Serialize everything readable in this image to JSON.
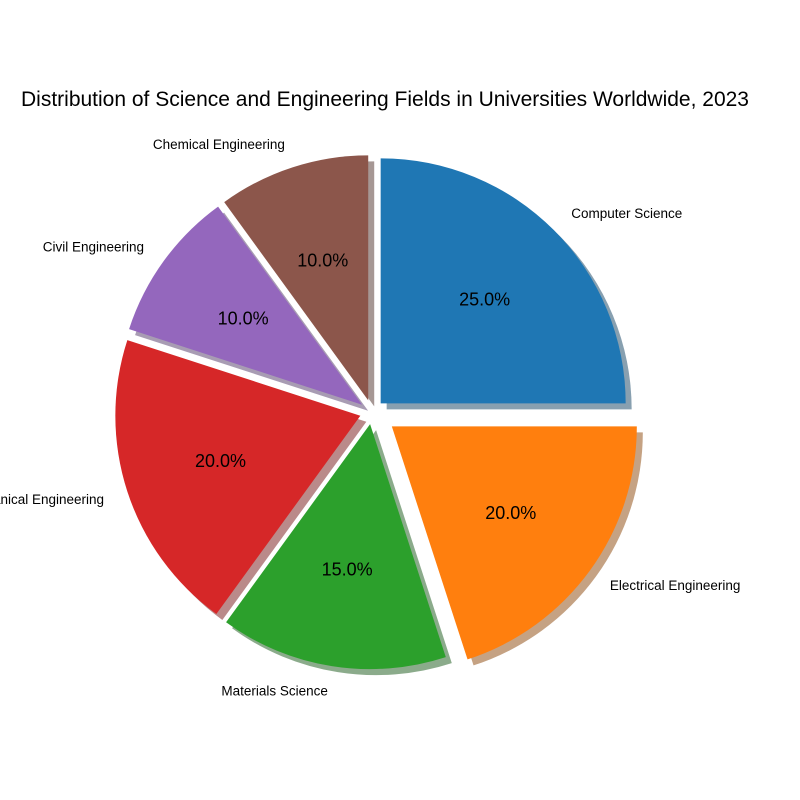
{
  "chart_data": {
    "type": "pie",
    "title": "Distribution of Science and Engineering Fields in Universities Worldwide, 2023",
    "categories": [
      "Computer Science",
      "Electrical Engineering",
      "Materials Science",
      "Mechanical Engineering",
      "Civil Engineering",
      "Chemical Engineering"
    ],
    "values": [
      25.0,
      20.0,
      15.0,
      20.0,
      10.0,
      10.0
    ],
    "percent_labels": [
      "25.0%",
      "20.0%",
      "15.0%",
      "20.0%",
      "10.0%",
      "10.0%"
    ],
    "colors": [
      "#1f77b4",
      "#ff7f0e",
      "#2ca02c",
      "#d62728",
      "#9467bd",
      "#8c564b"
    ],
    "explode": [
      0.05,
      0.1,
      0.05,
      0.05,
      0.05,
      0.05
    ],
    "start_angle_deg": 90,
    "direction": "clockwise",
    "shadow": true,
    "legend": false
  }
}
